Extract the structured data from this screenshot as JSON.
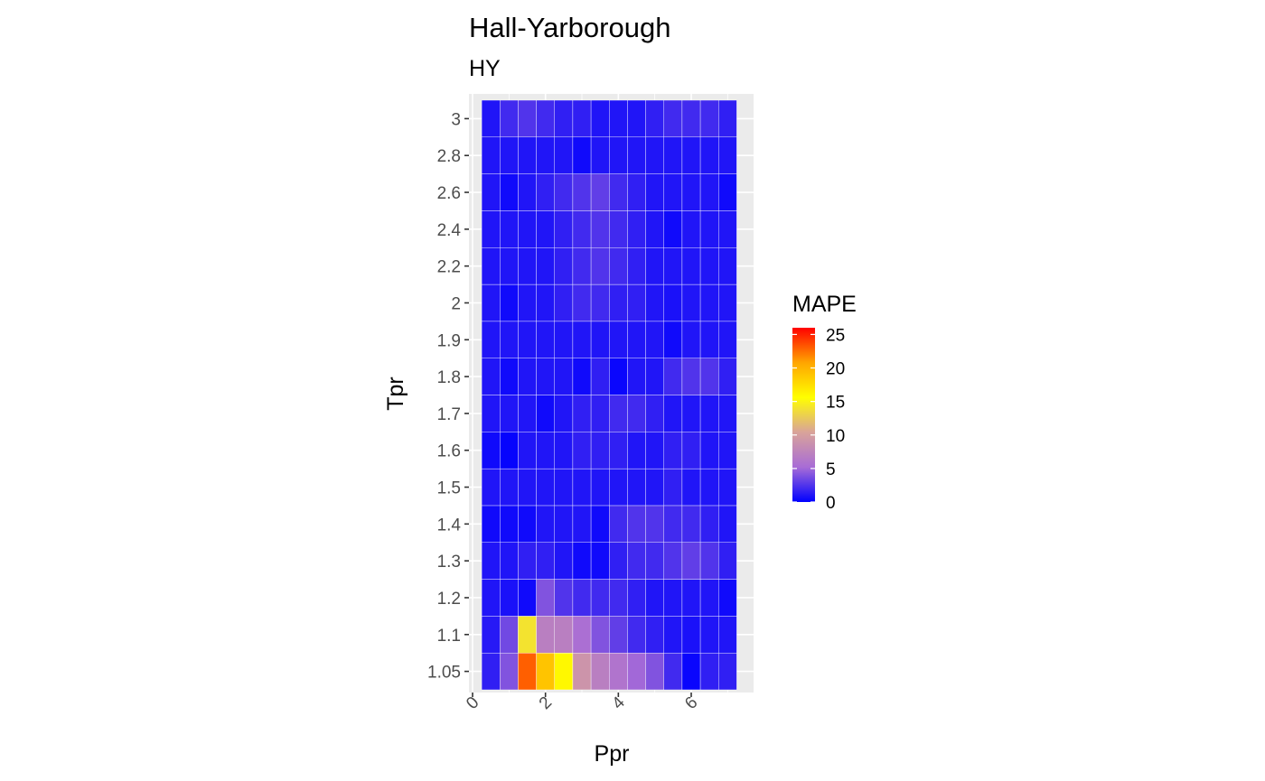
{
  "chart_data": {
    "type": "heatmap",
    "title": "Hall-Yarborough",
    "subtitle": "HY",
    "xlabel": "Ppr",
    "ylabel": "Tpr",
    "x_ticks": [
      "0",
      "2",
      "4",
      "6"
    ],
    "x_tick_values": [
      0,
      2,
      4,
      6
    ],
    "xlim": [
      0,
      7.5
    ],
    "y_categories": [
      "1.05",
      "1.1",
      "1.2",
      "1.3",
      "1.4",
      "1.5",
      "1.6",
      "1.7",
      "1.8",
      "1.9",
      "2",
      "2.2",
      "2.4",
      "2.6",
      "2.8",
      "3"
    ],
    "x_cells": [
      0.5,
      1,
      1.5,
      2,
      2.5,
      3,
      3.5,
      4,
      4.5,
      5,
      5.5,
      6,
      6.5,
      7
    ],
    "values": [
      [
        1.5,
        4,
        23,
        19,
        16,
        9,
        7,
        6,
        5,
        4,
        2,
        0.3,
        1.5,
        1.5
      ],
      [
        1.2,
        3.5,
        14,
        7,
        7,
        5.5,
        4,
        3,
        2,
        1.5,
        1,
        0.8,
        1,
        1
      ],
      [
        1,
        0.8,
        0.5,
        4,
        2.5,
        2,
        2,
        2,
        1.5,
        1,
        1,
        1,
        1,
        0.5
      ],
      [
        1,
        1,
        1.5,
        1.5,
        1,
        0.5,
        0.5,
        1.5,
        2,
        2,
        2.5,
        3,
        2.5,
        1.5
      ],
      [
        0.5,
        0.5,
        0.5,
        1,
        1,
        1,
        0.5,
        2,
        2.5,
        2.5,
        2,
        2,
        1.5,
        1
      ],
      [
        1,
        1,
        1,
        1,
        1,
        1,
        1,
        1,
        1,
        1,
        1.5,
        1,
        1,
        1
      ],
      [
        0.5,
        0.2,
        1,
        1,
        1,
        1.5,
        1.5,
        1.5,
        1,
        1,
        1.5,
        1.5,
        1,
        1
      ],
      [
        1,
        1,
        1,
        0.5,
        1,
        1.5,
        1.5,
        2,
        2,
        1.5,
        1,
        1,
        1,
        1
      ],
      [
        1,
        0.5,
        1,
        1,
        1,
        0.5,
        1.5,
        0.3,
        1,
        1,
        2,
        2.5,
        2.5,
        1.5
      ],
      [
        1,
        1,
        1,
        1,
        1,
        1,
        1,
        1,
        1,
        1,
        0.5,
        1,
        1,
        1
      ],
      [
        1,
        0.5,
        1,
        1,
        1.5,
        2,
        2,
        1.5,
        1.5,
        1,
        0.8,
        1,
        1,
        1
      ],
      [
        1,
        1,
        1,
        1,
        1.5,
        2,
        2.5,
        2,
        1.5,
        1,
        1,
        1,
        1,
        1
      ],
      [
        1,
        1,
        1,
        1,
        1.5,
        2,
        2.5,
        2,
        1.5,
        1,
        0.5,
        1,
        1,
        1
      ],
      [
        1,
        0.5,
        1,
        1.5,
        2,
        2.5,
        3,
        2,
        1.5,
        1,
        1,
        1,
        1,
        0.5
      ],
      [
        1,
        1,
        1,
        1,
        1,
        0.5,
        1,
        1,
        1,
        1,
        1,
        1,
        1,
        1
      ],
      [
        1,
        2,
        2.5,
        2,
        1.5,
        1.5,
        1,
        1,
        1,
        1.5,
        2,
        2,
        2,
        1.5
      ]
    ],
    "legend": {
      "title": "MAPE",
      "ticks": [
        "0",
        "5",
        "10",
        "15",
        "20",
        "25"
      ],
      "tick_values": [
        0,
        5,
        10,
        15,
        20,
        25
      ],
      "range": [
        0,
        26
      ],
      "placement": "right"
    },
    "color_stops": [
      "#0000ff",
      "#a86cd6",
      "#d9a39a",
      "#ffff00",
      "#ffa500",
      "#ff0000"
    ],
    "grid": true,
    "panel_background": "#ebebeb"
  }
}
